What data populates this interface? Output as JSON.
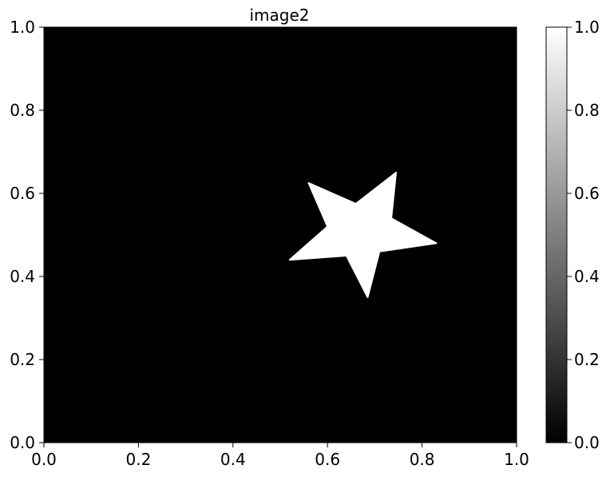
{
  "chart_data": {
    "type": "heatmap",
    "title": "image2",
    "xlabel": "",
    "ylabel": "",
    "xlim": [
      0.0,
      1.0
    ],
    "ylim": [
      0.0,
      1.0
    ],
    "x_ticks": [
      "0.0",
      "0.2",
      "0.4",
      "0.6",
      "0.8",
      "1.0"
    ],
    "y_ticks": [
      "0.0",
      "0.2",
      "0.4",
      "0.6",
      "0.8",
      "1.0"
    ],
    "grid": false,
    "colormap": "gray",
    "background_value": 0.0,
    "shape": {
      "name": "star",
      "value": 1.0,
      "vertices": [
        [
          0.745,
          0.65
        ],
        [
          0.735,
          0.54
        ],
        [
          0.83,
          0.48
        ],
        [
          0.71,
          0.46
        ],
        [
          0.685,
          0.35
        ],
        [
          0.64,
          0.45
        ],
        [
          0.52,
          0.44
        ],
        [
          0.6,
          0.52
        ],
        [
          0.56,
          0.625
        ],
        [
          0.66,
          0.575
        ]
      ]
    },
    "colorbar": {
      "range": [
        0.0,
        1.0
      ],
      "ticks": [
        "0.0",
        "0.2",
        "0.4",
        "0.6",
        "0.8",
        "1.0"
      ]
    },
    "colors": {
      "low": "#000000",
      "high": "#ffffff"
    }
  }
}
